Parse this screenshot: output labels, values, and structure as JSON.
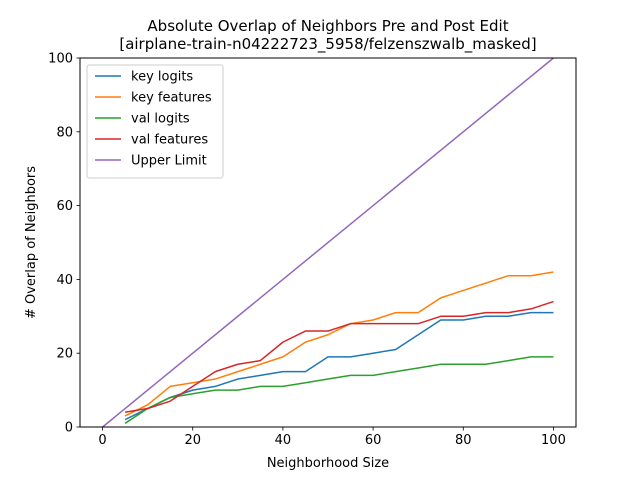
{
  "chart_data": {
    "type": "line",
    "title": "Absolute Overlap of Neighbors Pre and Post Edit",
    "subtitle": "[airplane-train-n04222723_5958/felzenszwalb_masked]",
    "xlabel": "Neighborhood Size",
    "ylabel": "# Overlap of Neighbors",
    "xlim": [
      -5,
      105
    ],
    "ylim": [
      0,
      100
    ],
    "xticks": [
      0,
      20,
      40,
      60,
      80,
      100
    ],
    "yticks": [
      0,
      20,
      40,
      60,
      80,
      100
    ],
    "grid": false,
    "legend_position": "upper-left",
    "series": [
      {
        "name": "key logits",
        "color": "#1f77b4",
        "x": [
          5,
          10,
          15,
          20,
          25,
          30,
          35,
          40,
          45,
          50,
          55,
          60,
          65,
          70,
          75,
          80,
          85,
          90,
          95,
          100
        ],
        "y": [
          2,
          5,
          8,
          10,
          11,
          13,
          14,
          15,
          15,
          19,
          19,
          20,
          21,
          25,
          29,
          29,
          30,
          30,
          31,
          31
        ]
      },
      {
        "name": "key features",
        "color": "#ff7f0e",
        "x": [
          5,
          10,
          15,
          20,
          25,
          30,
          35,
          40,
          45,
          50,
          55,
          60,
          65,
          70,
          75,
          80,
          85,
          90,
          95,
          100
        ],
        "y": [
          3,
          6,
          11,
          12,
          13,
          15,
          17,
          19,
          23,
          25,
          28,
          29,
          31,
          31,
          35,
          37,
          39,
          41,
          41,
          42
        ]
      },
      {
        "name": "val logits",
        "color": "#2ca02c",
        "x": [
          5,
          10,
          15,
          20,
          25,
          30,
          35,
          40,
          45,
          50,
          55,
          60,
          65,
          70,
          75,
          80,
          85,
          90,
          95,
          100
        ],
        "y": [
          1,
          5,
          8,
          9,
          10,
          10,
          11,
          11,
          12,
          13,
          14,
          14,
          15,
          16,
          17,
          17,
          17,
          18,
          19,
          19
        ]
      },
      {
        "name": "val features",
        "color": "#d62728",
        "x": [
          5,
          10,
          15,
          20,
          25,
          30,
          35,
          40,
          45,
          50,
          55,
          60,
          65,
          70,
          75,
          80,
          85,
          90,
          95,
          100
        ],
        "y": [
          4,
          5,
          7,
          11,
          15,
          17,
          18,
          23,
          26,
          26,
          28,
          28,
          28,
          28,
          30,
          30,
          31,
          31,
          32,
          34
        ]
      },
      {
        "name": "Upper Limit",
        "color": "#9467bd",
        "x": [
          0,
          100
        ],
        "y": [
          0,
          100
        ]
      }
    ]
  }
}
